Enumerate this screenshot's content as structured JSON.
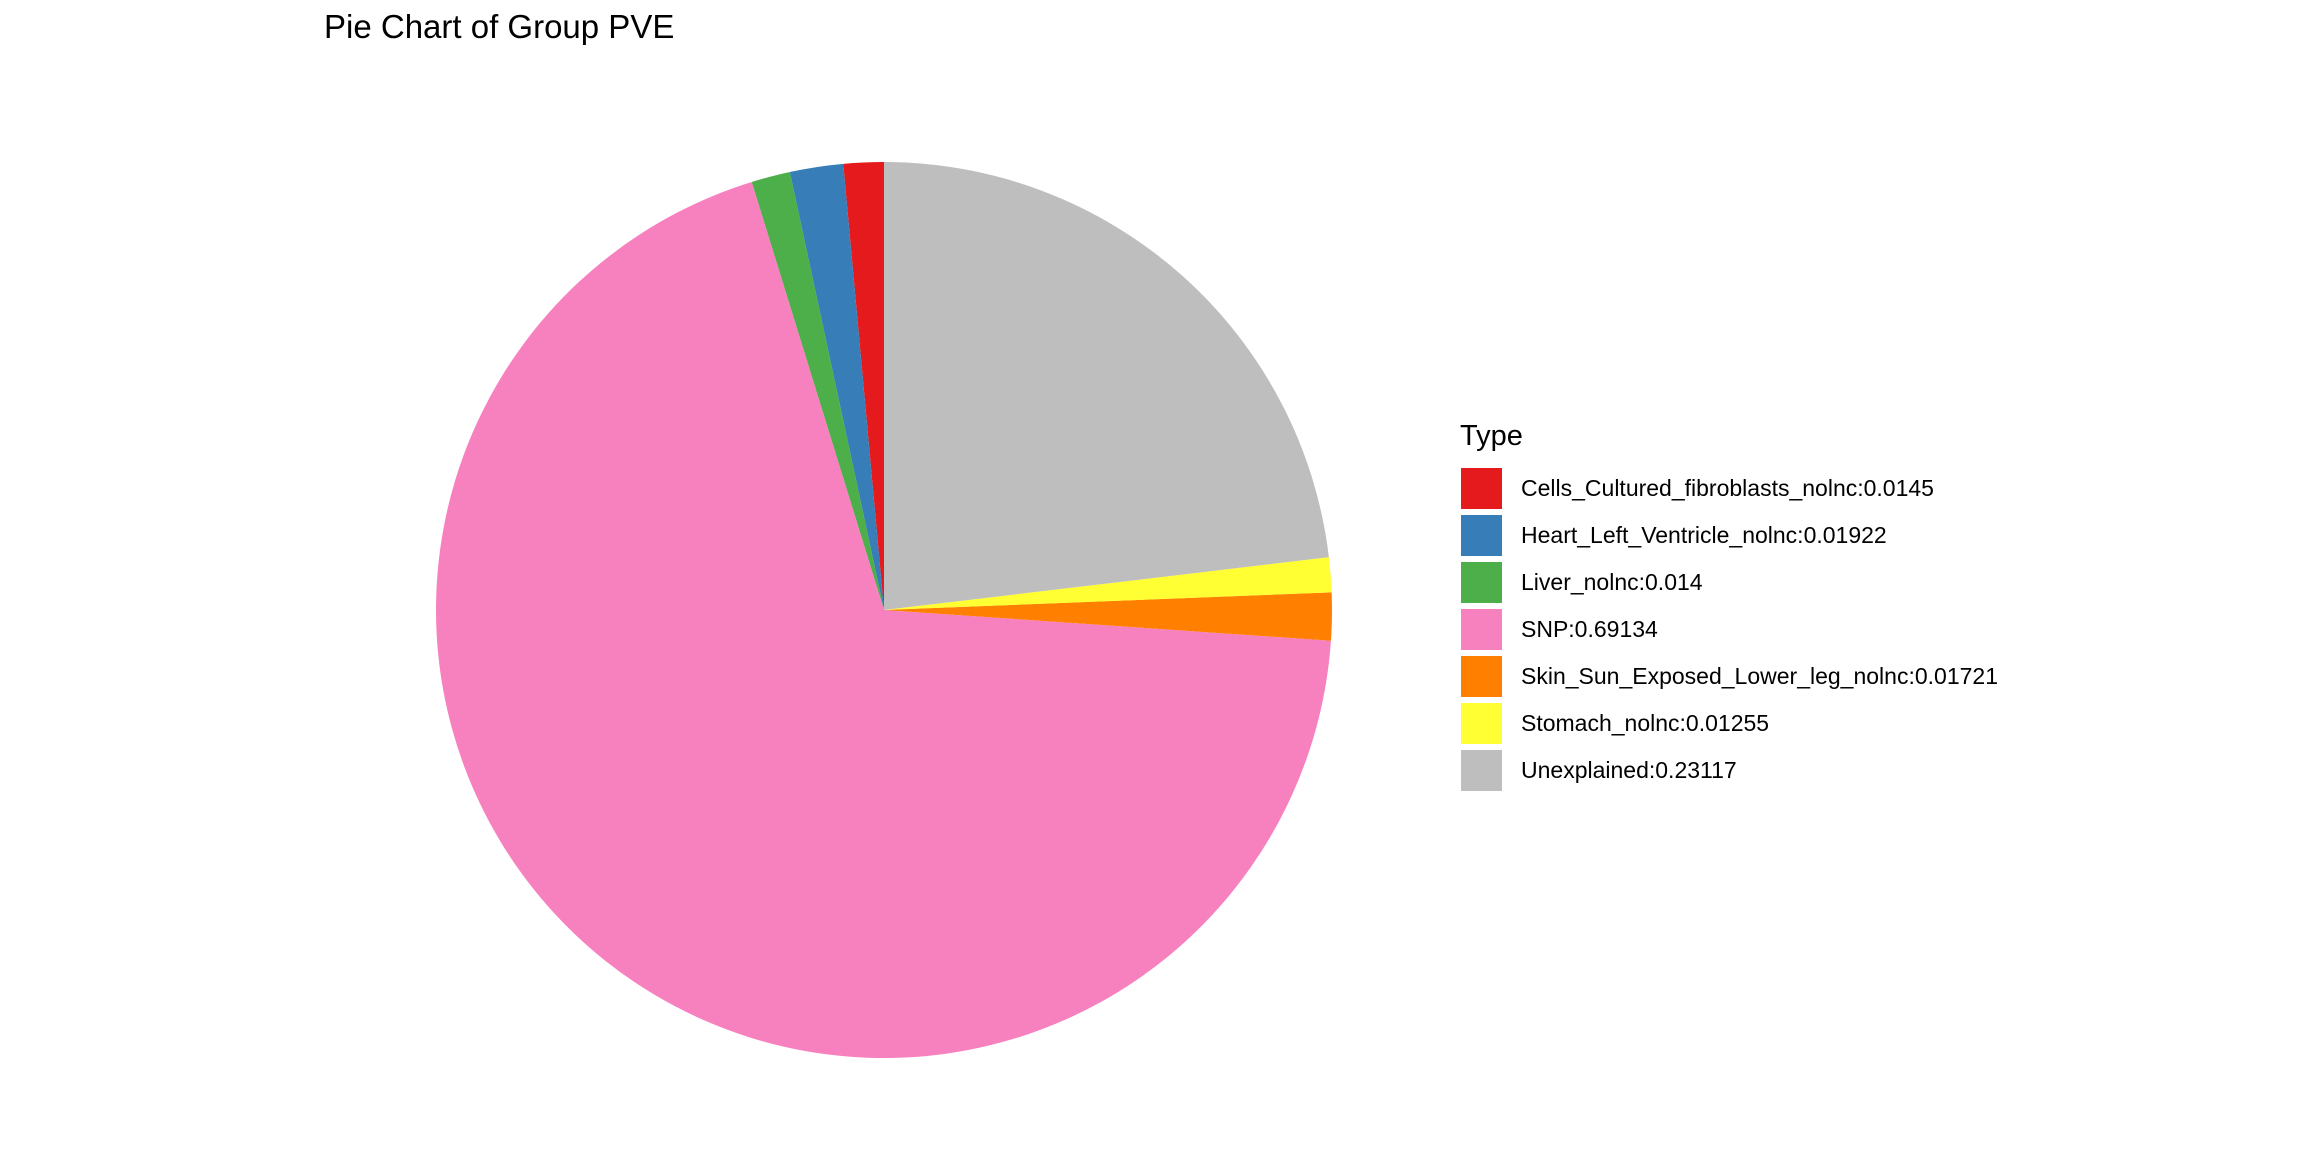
{
  "chart_data": {
    "type": "pie",
    "title": "Pie Chart of Group PVE",
    "legend_title": "Type",
    "legend_position": "right",
    "slices": [
      {
        "label": "Cells_Cultured_fibroblasts_nolnc:0.0145",
        "value": 0.0145,
        "color": "#E41A1C"
      },
      {
        "label": "Heart_Left_Ventricle_nolnc:0.01922",
        "value": 0.01922,
        "color": "#377EB8"
      },
      {
        "label": "Liver_nolnc:0.014",
        "value": 0.014,
        "color": "#4DAF4A"
      },
      {
        "label": "SNP:0.69134",
        "value": 0.69134,
        "color": "#F781BF"
      },
      {
        "label": "Skin_Sun_Exposed_Lower_leg_nolnc:0.01721",
        "value": 0.01721,
        "color": "#FF7F00"
      },
      {
        "label": "Stomach_nolnc:0.01255",
        "value": 0.01255,
        "color": "#FFFF33"
      },
      {
        "label": "Unexplained:0.23117",
        "value": 0.23117,
        "color": "#BEBEBE"
      }
    ],
    "direction": "counterclockwise"
  }
}
